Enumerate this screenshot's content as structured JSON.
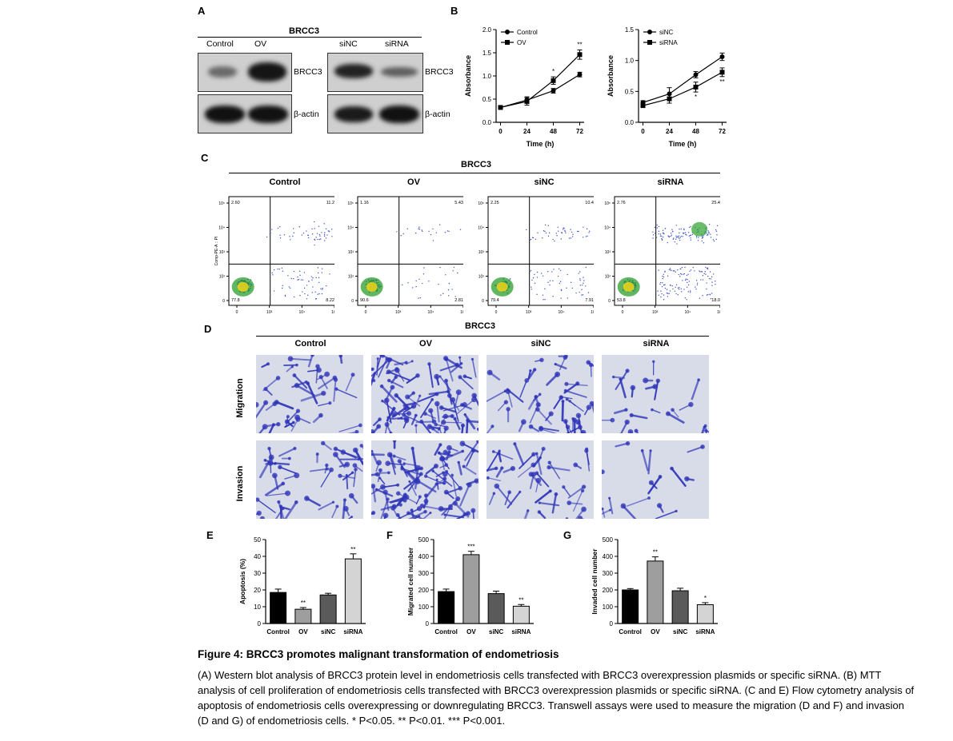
{
  "panels": {
    "a": "A",
    "b": "B",
    "c": "C",
    "d": "D",
    "e": "E",
    "f": "F",
    "g": "G"
  },
  "panel_a": {
    "title": "BRCC3",
    "left_lanes": [
      "Control",
      "OV"
    ],
    "right_lanes": [
      "siNC",
      "siRNA"
    ],
    "row_labels": [
      "BRCC3",
      "β-actin"
    ]
  },
  "panel_c": {
    "title": "BRCC3",
    "ylabel": "Comp-PE-A :: PI",
    "groups": [
      {
        "name": "Control",
        "q": [
          "2.60",
          "11.2",
          "77.8",
          "8.22"
        ]
      },
      {
        "name": "OV",
        "q": [
          "1.16",
          "5.43",
          "90.6",
          "2.81"
        ]
      },
      {
        "name": "siNC",
        "q": [
          "2.25",
          "10.4",
          "79.4",
          "7.91"
        ]
      },
      {
        "name": "siRNA",
        "q": [
          "2.76",
          "25.4",
          "53.8",
          "18.0"
        ]
      }
    ],
    "ticks": [
      "10⁵",
      "10⁴",
      "10³",
      "10²",
      "0"
    ],
    "xticks": [
      "0",
      "10³",
      "10⁴",
      "10⁵"
    ]
  },
  "panel_d": {
    "title": "BRCC3",
    "columns": [
      "Control",
      "OV",
      "siNC",
      "siRNA"
    ],
    "rows": [
      "Migration",
      "Invasion"
    ],
    "colors": {
      "bg": "#d8dce8",
      "cell": "#2f35b8"
    }
  },
  "chart_data": [
    {
      "type": "line",
      "x": [
        0,
        24,
        48,
        72
      ],
      "series": [
        {
          "name": "Control",
          "values": [
            0.32,
            0.48,
            0.68,
            1.03
          ]
        },
        {
          "name": "OV",
          "values": [
            0.32,
            0.45,
            0.9,
            1.46
          ]
        }
      ],
      "errors": [
        [
          0.03,
          0.07,
          0.05,
          0.05
        ],
        [
          0.03,
          0.08,
          0.08,
          0.1
        ]
      ],
      "annotations": [
        {
          "series": "OV",
          "x": 48,
          "text": "*"
        },
        {
          "series": "OV",
          "x": 72,
          "text": "**"
        }
      ],
      "xlabel": "Time (h)",
      "ylabel": "Absorbance",
      "ylim": [
        0.0,
        2.0
      ],
      "yticks": [
        "0.0",
        "0.5",
        "1.0",
        "1.5",
        "2.0"
      ],
      "legend": "top-left"
    },
    {
      "type": "line",
      "x": [
        0,
        24,
        48,
        72
      ],
      "series": [
        {
          "name": "siNC",
          "values": [
            0.32,
            0.46,
            0.77,
            1.06
          ]
        },
        {
          "name": "siRNA",
          "values": [
            0.27,
            0.38,
            0.57,
            0.81
          ]
        }
      ],
      "errors": [
        [
          0.03,
          0.1,
          0.05,
          0.06
        ],
        [
          0.03,
          0.07,
          0.08,
          0.07
        ]
      ],
      "annotations": [
        {
          "series": "siRNA",
          "x": 48,
          "text": "*"
        },
        {
          "series": "siRNA",
          "x": 72,
          "text": "**"
        }
      ],
      "xlabel": "Time (h)",
      "ylabel": "Absorbance",
      "ylim": [
        0.0,
        1.5
      ],
      "yticks": [
        "0.0",
        "0.5",
        "1.0",
        "1.5"
      ],
      "legend": "top-left"
    },
    {
      "type": "bar",
      "categories": [
        "Control",
        "OV",
        "siNC",
        "siRNA"
      ],
      "values": [
        18.5,
        8.5,
        17.0,
        38.5
      ],
      "errors": [
        2.0,
        1.0,
        1.0,
        3.0
      ],
      "annotations": [
        "",
        "**",
        "",
        "**"
      ],
      "ylabel": "Apoptosis (%)",
      "ylim": [
        0,
        50
      ],
      "yticks": [
        "0",
        "10",
        "20",
        "30",
        "40",
        "50"
      ],
      "colors": [
        "#000000",
        "#9e9e9e",
        "#5a5a5a",
        "#d4d4d4"
      ]
    },
    {
      "type": "bar",
      "categories": [
        "Control",
        "OV",
        "siNC",
        "siRNA"
      ],
      "values": [
        190,
        410,
        178,
        103
      ],
      "errors": [
        15,
        20,
        15,
        10
      ],
      "annotations": [
        "",
        "***",
        "",
        "**"
      ],
      "ylabel": "Migrated cell number",
      "ylim": [
        0,
        500
      ],
      "yticks": [
        "0",
        "100",
        "200",
        "300",
        "400",
        "500"
      ],
      "colors": [
        "#000000",
        "#9e9e9e",
        "#5a5a5a",
        "#d4d4d4"
      ]
    },
    {
      "type": "bar",
      "categories": [
        "Control",
        "OV",
        "siNC",
        "siRNA"
      ],
      "values": [
        200,
        372,
        195,
        112
      ],
      "errors": [
        8,
        25,
        15,
        12
      ],
      "annotations": [
        "",
        "**",
        "",
        "*"
      ],
      "ylabel": "Invaded cell number",
      "ylim": [
        0,
        500
      ],
      "yticks": [
        "0",
        "100",
        "200",
        "300",
        "400",
        "500"
      ],
      "colors": [
        "#000000",
        "#9e9e9e",
        "#5a5a5a",
        "#d4d4d4"
      ]
    }
  ],
  "caption": {
    "title": "Figure 4: BRCC3 promotes malignant transformation of endometriosis",
    "text": "(A) Western blot analysis of BRCC3 protein level in endometriosis cells transfected with BRCC3 overexpression plasmids or specific siRNA. (B) MTT analysis of cell proliferation of endometriosis cells transfected with BRCC3 overexpression plasmids or specific siRNA. (C and E) Flow cytometry analysis of apoptosis of endometriosis cells overexpressing or downregulating BRCC3. Transwell assays were used to measure the migration (D and F) and invasion (D and G) of endometriosis cells. * P<0.05. ** P<0.01. *** P<0.001."
  }
}
